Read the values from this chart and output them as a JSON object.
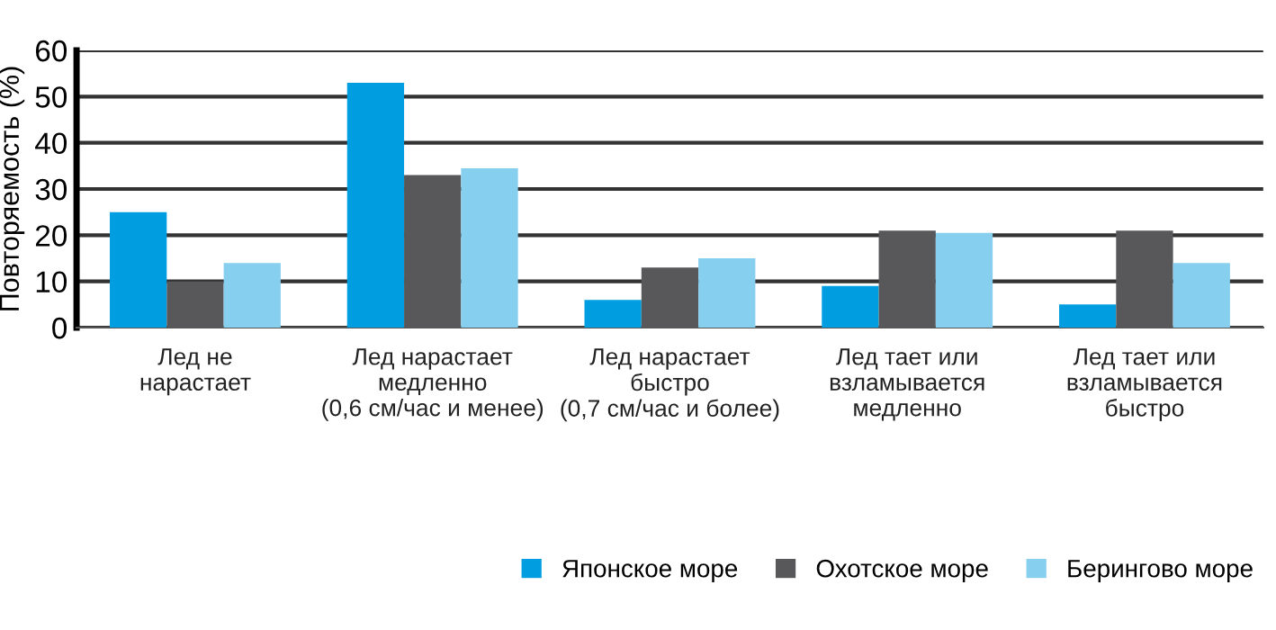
{
  "chart_data": {
    "type": "bar",
    "ylabel": "Повторяемость (%)",
    "categories": [
      "Лед не\nнарастает",
      "Лед нарастает\nмедленно\n(0,6 см/час и менее)",
      "Лед нарастает\nбыстро\n(0,7 см/час и более)",
      "Лед тает или\nвзламывается\nмедленно",
      "Лед тает или\nвзламывается\nбыстро"
    ],
    "series": [
      {
        "name": "Японское море",
        "color": "#009ee0",
        "values": [
          25,
          53,
          6,
          9,
          5
        ]
      },
      {
        "name": "Охотское море",
        "color": "#58585a",
        "values": [
          10,
          33,
          13,
          21,
          21
        ]
      },
      {
        "name": "Берингово море",
        "color": "#87cfef",
        "values": [
          14,
          34.5,
          15,
          20.5,
          14
        ]
      }
    ],
    "ylim": [
      0,
      60
    ],
    "yticks": [
      0,
      10,
      20,
      30,
      40,
      50,
      60
    ],
    "grid": "y",
    "legend": "bottom right"
  }
}
